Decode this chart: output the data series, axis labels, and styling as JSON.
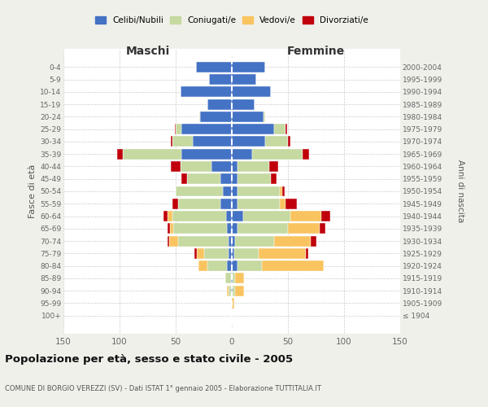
{
  "age_groups": [
    "0-4",
    "5-9",
    "10-14",
    "15-19",
    "20-24",
    "25-29",
    "30-34",
    "35-39",
    "40-44",
    "45-49",
    "50-54",
    "55-59",
    "60-64",
    "65-69",
    "70-74",
    "75-79",
    "80-84",
    "85-89",
    "90-94",
    "95-99",
    "100+"
  ],
  "birth_years": [
    "2000-2004",
    "1995-1999",
    "1990-1994",
    "1985-1989",
    "1980-1984",
    "1975-1979",
    "1970-1974",
    "1965-1969",
    "1960-1964",
    "1955-1959",
    "1950-1954",
    "1945-1949",
    "1940-1944",
    "1935-1939",
    "1930-1934",
    "1925-1929",
    "1920-1924",
    "1915-1919",
    "1910-1914",
    "1905-1909",
    "≤ 1904"
  ],
  "males": {
    "celibi": [
      32,
      20,
      46,
      22,
      28,
      45,
      35,
      45,
      18,
      10,
      8,
      10,
      5,
      4,
      3,
      3,
      4,
      1,
      1,
      0,
      0
    ],
    "coniugati": [
      0,
      0,
      0,
      0,
      1,
      5,
      18,
      52,
      28,
      30,
      42,
      38,
      48,
      48,
      45,
      22,
      18,
      5,
      2,
      0,
      0
    ],
    "vedovi": [
      0,
      0,
      0,
      0,
      0,
      0,
      0,
      0,
      0,
      0,
      0,
      0,
      4,
      3,
      8,
      6,
      8,
      0,
      1,
      0,
      0
    ],
    "divorziati": [
      0,
      0,
      0,
      0,
      0,
      1,
      1,
      5,
      8,
      5,
      0,
      5,
      4,
      2,
      1,
      2,
      0,
      0,
      0,
      0,
      0
    ]
  },
  "females": {
    "nubili": [
      30,
      22,
      35,
      20,
      28,
      38,
      30,
      18,
      5,
      5,
      5,
      5,
      10,
      5,
      3,
      2,
      5,
      1,
      1,
      0,
      0
    ],
    "coniugate": [
      0,
      0,
      0,
      0,
      2,
      10,
      20,
      45,
      28,
      30,
      38,
      38,
      42,
      45,
      35,
      22,
      22,
      2,
      2,
      0,
      0
    ],
    "vedove": [
      0,
      0,
      0,
      0,
      0,
      0,
      0,
      0,
      0,
      0,
      2,
      5,
      28,
      28,
      32,
      42,
      55,
      8,
      8,
      2,
      0
    ],
    "divorziate": [
      0,
      0,
      0,
      0,
      0,
      1,
      2,
      6,
      8,
      5,
      2,
      10,
      8,
      5,
      5,
      2,
      0,
      0,
      0,
      0,
      0
    ]
  },
  "colors": {
    "celibi": "#4472c4",
    "coniugati": "#c5d9a0",
    "vedovi": "#f9c460",
    "divorziati": "#c0000b"
  },
  "xlim": 150,
  "title": "Popolazione per età, sesso e stato civile - 2005",
  "subtitle": "COMUNE DI BORGIO VEREZZI (SV) - Dati ISTAT 1° gennaio 2005 - Elaborazione TUTTITALIA.IT",
  "ylabel_left": "Fasce di età",
  "ylabel_right": "Anni di nascita",
  "header_maschi": "Maschi",
  "header_femmine": "Femmine",
  "legend": [
    "Celibi/Nubili",
    "Coniugati/e",
    "Vedovi/e",
    "Divorziati/e"
  ],
  "bg_color": "#f0f0eb",
  "plot_bg": "#ffffff"
}
